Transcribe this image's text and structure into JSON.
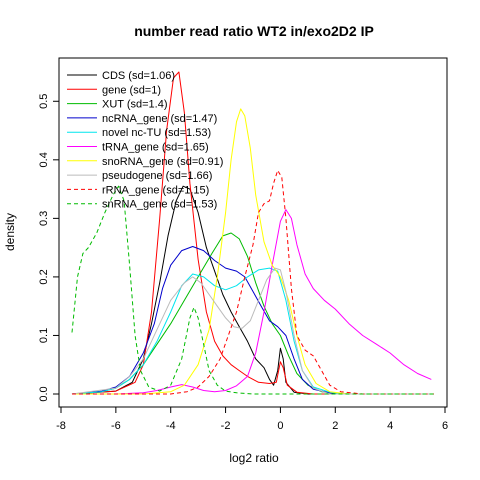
{
  "chart_data": {
    "type": "line",
    "title": "number read ratio WT2 in/exo2D2 IP",
    "xlabel": "log2 ratio",
    "ylabel": "density",
    "xlim": [
      -8,
      6
    ],
    "ylim": [
      0,
      0.55
    ],
    "xticks": [
      -8,
      -6,
      -4,
      -2,
      0,
      2,
      4,
      6
    ],
    "yticks": [
      0.0,
      0.1,
      0.2,
      0.3,
      0.4,
      0.5
    ],
    "xtick_labels": [
      "-8",
      "-6",
      "-4",
      "-2",
      "0",
      "2",
      "4",
      "6"
    ],
    "ytick_labels": [
      "0.0",
      "0.1",
      "0.2",
      "0.3",
      "0.4",
      "0.5"
    ],
    "grid": false,
    "legend_position": "top-left",
    "series": [
      {
        "name": "CDS (sd=1.06)",
        "color": "#000000",
        "dash": "solid",
        "points": [
          [
            -7.6,
            0.0
          ],
          [
            -6,
            0.005
          ],
          [
            -5.4,
            0.02
          ],
          [
            -5,
            0.06
          ],
          [
            -4.7,
            0.12
          ],
          [
            -4.4,
            0.19
          ],
          [
            -4.1,
            0.27
          ],
          [
            -3.8,
            0.33
          ],
          [
            -3.55,
            0.355
          ],
          [
            -3.3,
            0.35
          ],
          [
            -3.0,
            0.31
          ],
          [
            -2.7,
            0.25
          ],
          [
            -2.4,
            0.21
          ],
          [
            -2.1,
            0.17
          ],
          [
            -1.8,
            0.14
          ],
          [
            -1.5,
            0.115
          ],
          [
            -1.2,
            0.09
          ],
          [
            -0.9,
            0.06
          ],
          [
            -0.6,
            0.045
          ],
          [
            -0.4,
            0.025
          ],
          [
            -0.25,
            0.015
          ],
          [
            -0.1,
            0.04
          ],
          [
            0.0,
            0.078
          ],
          [
            0.1,
            0.06
          ],
          [
            0.2,
            0.02
          ],
          [
            0.5,
            0.003
          ],
          [
            1.0,
            0.0
          ],
          [
            5.6,
            0.0
          ]
        ]
      },
      {
        "name": "gene (sd=1)",
        "color": "#ff0000",
        "dash": "solid",
        "points": [
          [
            -7.6,
            0.0
          ],
          [
            -6,
            0.005
          ],
          [
            -5.3,
            0.02
          ],
          [
            -5.0,
            0.05
          ],
          [
            -4.7,
            0.14
          ],
          [
            -4.4,
            0.3
          ],
          [
            -4.15,
            0.45
          ],
          [
            -3.9,
            0.54
          ],
          [
            -3.7,
            0.55
          ],
          [
            -3.5,
            0.48
          ],
          [
            -3.3,
            0.36
          ],
          [
            -3.0,
            0.23
          ],
          [
            -2.7,
            0.14
          ],
          [
            -2.4,
            0.09
          ],
          [
            -2.1,
            0.065
          ],
          [
            -1.8,
            0.05
          ],
          [
            -1.5,
            0.04
          ],
          [
            -1.2,
            0.03
          ],
          [
            -0.8,
            0.02
          ],
          [
            -0.4,
            0.018
          ],
          [
            -0.15,
            0.02
          ],
          [
            0.0,
            0.055
          ],
          [
            0.1,
            0.045
          ],
          [
            0.25,
            0.015
          ],
          [
            0.6,
            0.003
          ],
          [
            1.2,
            0.0
          ],
          [
            5.6,
            0.0
          ]
        ]
      },
      {
        "name": "XUT (sd=1.4)",
        "color": "#00bb00",
        "dash": "solid",
        "points": [
          [
            -7.6,
            0.0
          ],
          [
            -6.5,
            0.004
          ],
          [
            -6,
            0.01
          ],
          [
            -5.5,
            0.025
          ],
          [
            -5,
            0.05
          ],
          [
            -4.5,
            0.085
          ],
          [
            -4,
            0.12
          ],
          [
            -3.5,
            0.16
          ],
          [
            -3,
            0.2
          ],
          [
            -2.5,
            0.24
          ],
          [
            -2.1,
            0.27
          ],
          [
            -1.8,
            0.275
          ],
          [
            -1.5,
            0.265
          ],
          [
            -1.2,
            0.235
          ],
          [
            -0.9,
            0.19
          ],
          [
            -0.6,
            0.15
          ],
          [
            -0.3,
            0.12
          ],
          [
            0.0,
            0.1
          ],
          [
            0.3,
            0.065
          ],
          [
            0.6,
            0.035
          ],
          [
            1.0,
            0.015
          ],
          [
            1.5,
            0.004
          ],
          [
            2.2,
            0.0
          ],
          [
            5.6,
            0.0
          ]
        ]
      },
      {
        "name": "ncRNA_gene (sd=1.47)",
        "color": "#0000cc",
        "dash": "solid",
        "points": [
          [
            -7.6,
            0.0
          ],
          [
            -6.5,
            0.005
          ],
          [
            -6,
            0.012
          ],
          [
            -5.5,
            0.03
          ],
          [
            -5,
            0.07
          ],
          [
            -4.6,
            0.12
          ],
          [
            -4.3,
            0.18
          ],
          [
            -4.0,
            0.22
          ],
          [
            -3.6,
            0.245
          ],
          [
            -3.2,
            0.252
          ],
          [
            -2.8,
            0.245
          ],
          [
            -2.4,
            0.228
          ],
          [
            -2.0,
            0.215
          ],
          [
            -1.6,
            0.21
          ],
          [
            -1.3,
            0.2
          ],
          [
            -1.0,
            0.175
          ],
          [
            -0.7,
            0.15
          ],
          [
            -0.4,
            0.125
          ],
          [
            -0.1,
            0.115
          ],
          [
            0.2,
            0.1
          ],
          [
            0.5,
            0.06
          ],
          [
            0.8,
            0.025
          ],
          [
            1.2,
            0.008
          ],
          [
            2.0,
            0.0
          ],
          [
            5.6,
            0.0
          ]
        ]
      },
      {
        "name": "novel nc-TU (sd=1.53)",
        "color": "#00e5ee",
        "dash": "solid",
        "points": [
          [
            -7.6,
            0.0
          ],
          [
            -6.5,
            0.004
          ],
          [
            -6,
            0.01
          ],
          [
            -5.5,
            0.025
          ],
          [
            -5,
            0.05
          ],
          [
            -4.5,
            0.09
          ],
          [
            -4.0,
            0.14
          ],
          [
            -3.6,
            0.185
          ],
          [
            -3.2,
            0.205
          ],
          [
            -2.8,
            0.2
          ],
          [
            -2.4,
            0.185
          ],
          [
            -2.0,
            0.178
          ],
          [
            -1.6,
            0.185
          ],
          [
            -1.2,
            0.2
          ],
          [
            -0.8,
            0.212
          ],
          [
            -0.4,
            0.215
          ],
          [
            -0.1,
            0.21
          ],
          [
            0.2,
            0.16
          ],
          [
            0.5,
            0.09
          ],
          [
            0.8,
            0.04
          ],
          [
            1.2,
            0.012
          ],
          [
            1.8,
            0.003
          ],
          [
            2.5,
            0.0
          ],
          [
            5.6,
            0.0
          ]
        ]
      },
      {
        "name": "tRNA_gene (sd=1.65)",
        "color": "#ff00ff",
        "dash": "solid",
        "points": [
          [
            -7.6,
            0.0
          ],
          [
            -6,
            0.0
          ],
          [
            -5,
            0.002
          ],
          [
            -4.5,
            0.006
          ],
          [
            -4.0,
            0.012
          ],
          [
            -3.6,
            0.016
          ],
          [
            -3.2,
            0.012
          ],
          [
            -2.8,
            0.006
          ],
          [
            -2.4,
            0.004
          ],
          [
            -2.0,
            0.006
          ],
          [
            -1.6,
            0.014
          ],
          [
            -1.2,
            0.03
          ],
          [
            -0.9,
            0.07
          ],
          [
            -0.6,
            0.14
          ],
          [
            -0.3,
            0.22
          ],
          [
            0.0,
            0.295
          ],
          [
            0.2,
            0.315
          ],
          [
            0.4,
            0.3
          ],
          [
            0.6,
            0.255
          ],
          [
            0.9,
            0.205
          ],
          [
            1.2,
            0.18
          ],
          [
            1.6,
            0.16
          ],
          [
            2.0,
            0.145
          ],
          [
            2.5,
            0.12
          ],
          [
            3.0,
            0.1
          ],
          [
            3.5,
            0.085
          ],
          [
            4.0,
            0.07
          ],
          [
            4.5,
            0.05
          ],
          [
            5.0,
            0.035
          ],
          [
            5.5,
            0.025
          ]
        ]
      },
      {
        "name": "snoRNA_gene (sd=0.91)",
        "color": "#ffff00",
        "dash": "solid",
        "points": [
          [
            -7.6,
            0.0
          ],
          [
            -5,
            0.0
          ],
          [
            -4.0,
            0.004
          ],
          [
            -3.5,
            0.015
          ],
          [
            -3.0,
            0.05
          ],
          [
            -2.6,
            0.11
          ],
          [
            -2.3,
            0.2
          ],
          [
            -2.0,
            0.31
          ],
          [
            -1.8,
            0.4
          ],
          [
            -1.6,
            0.465
          ],
          [
            -1.45,
            0.487
          ],
          [
            -1.3,
            0.475
          ],
          [
            -1.1,
            0.42
          ],
          [
            -0.9,
            0.34
          ],
          [
            -0.6,
            0.26
          ],
          [
            -0.3,
            0.22
          ],
          [
            0.0,
            0.2
          ],
          [
            0.3,
            0.16
          ],
          [
            0.6,
            0.1
          ],
          [
            0.9,
            0.05
          ],
          [
            1.3,
            0.018
          ],
          [
            1.8,
            0.004
          ],
          [
            2.5,
            0.0
          ],
          [
            5.6,
            0.0
          ]
        ]
      },
      {
        "name": "pseudogene (sd=1.66)",
        "color": "#bbbbbb",
        "dash": "solid",
        "points": [
          [
            -7.6,
            0.0
          ],
          [
            -6,
            0.01
          ],
          [
            -5.5,
            0.03
          ],
          [
            -5.0,
            0.06
          ],
          [
            -4.5,
            0.11
          ],
          [
            -4.0,
            0.16
          ],
          [
            -3.5,
            0.19
          ],
          [
            -3.2,
            0.2
          ],
          [
            -2.9,
            0.19
          ],
          [
            -2.6,
            0.17
          ],
          [
            -2.3,
            0.15
          ],
          [
            -2.0,
            0.13
          ],
          [
            -1.7,
            0.115
          ],
          [
            -1.4,
            0.112
          ],
          [
            -1.1,
            0.125
          ],
          [
            -0.8,
            0.16
          ],
          [
            -0.5,
            0.195
          ],
          [
            -0.2,
            0.215
          ],
          [
            0.0,
            0.212
          ],
          [
            0.2,
            0.175
          ],
          [
            0.5,
            0.1
          ],
          [
            0.8,
            0.04
          ],
          [
            1.2,
            0.01
          ],
          [
            1.8,
            0.0
          ],
          [
            5.6,
            0.0
          ]
        ]
      },
      {
        "name": "rRNA_gene (sd=1.15)",
        "color": "#ff0000",
        "dash": "dashed",
        "points": [
          [
            -7.6,
            0.0
          ],
          [
            -4,
            0.0
          ],
          [
            -3.4,
            0.004
          ],
          [
            -3.0,
            0.012
          ],
          [
            -2.6,
            0.03
          ],
          [
            -2.2,
            0.06
          ],
          [
            -1.9,
            0.1
          ],
          [
            -1.6,
            0.14
          ],
          [
            -1.3,
            0.2
          ],
          [
            -1.0,
            0.255
          ],
          [
            -0.8,
            0.31
          ],
          [
            -0.6,
            0.325
          ],
          [
            -0.4,
            0.33
          ],
          [
            -0.25,
            0.36
          ],
          [
            -0.1,
            0.382
          ],
          [
            0.05,
            0.37
          ],
          [
            0.2,
            0.3
          ],
          [
            0.4,
            0.18
          ],
          [
            0.6,
            0.1
          ],
          [
            0.9,
            0.075
          ],
          [
            1.2,
            0.065
          ],
          [
            1.5,
            0.04
          ],
          [
            1.8,
            0.015
          ],
          [
            2.2,
            0.004
          ],
          [
            3.0,
            0.0
          ],
          [
            5.6,
            0.0
          ]
        ]
      },
      {
        "name": "snRNA_gene (sd=1.53)",
        "color": "#00bb00",
        "dash": "dashed",
        "points": [
          [
            -7.6,
            0.105
          ],
          [
            -7.4,
            0.2
          ],
          [
            -7.2,
            0.24
          ],
          [
            -7.0,
            0.25
          ],
          [
            -6.7,
            0.275
          ],
          [
            -6.4,
            0.31
          ],
          [
            -6.1,
            0.34
          ],
          [
            -5.9,
            0.355
          ],
          [
            -5.7,
            0.33
          ],
          [
            -5.5,
            0.22
          ],
          [
            -5.3,
            0.1
          ],
          [
            -5.1,
            0.04
          ],
          [
            -4.8,
            0.012
          ],
          [
            -4.4,
            0.005
          ],
          [
            -4.0,
            0.015
          ],
          [
            -3.6,
            0.06
          ],
          [
            -3.3,
            0.13
          ],
          [
            -3.15,
            0.148
          ],
          [
            -3.0,
            0.13
          ],
          [
            -2.8,
            0.085
          ],
          [
            -2.6,
            0.04
          ],
          [
            -2.3,
            0.015
          ],
          [
            -2.0,
            0.005
          ],
          [
            -1.6,
            0.002
          ],
          [
            -1.0,
            0.0
          ],
          [
            5.6,
            0.0
          ]
        ]
      }
    ]
  }
}
